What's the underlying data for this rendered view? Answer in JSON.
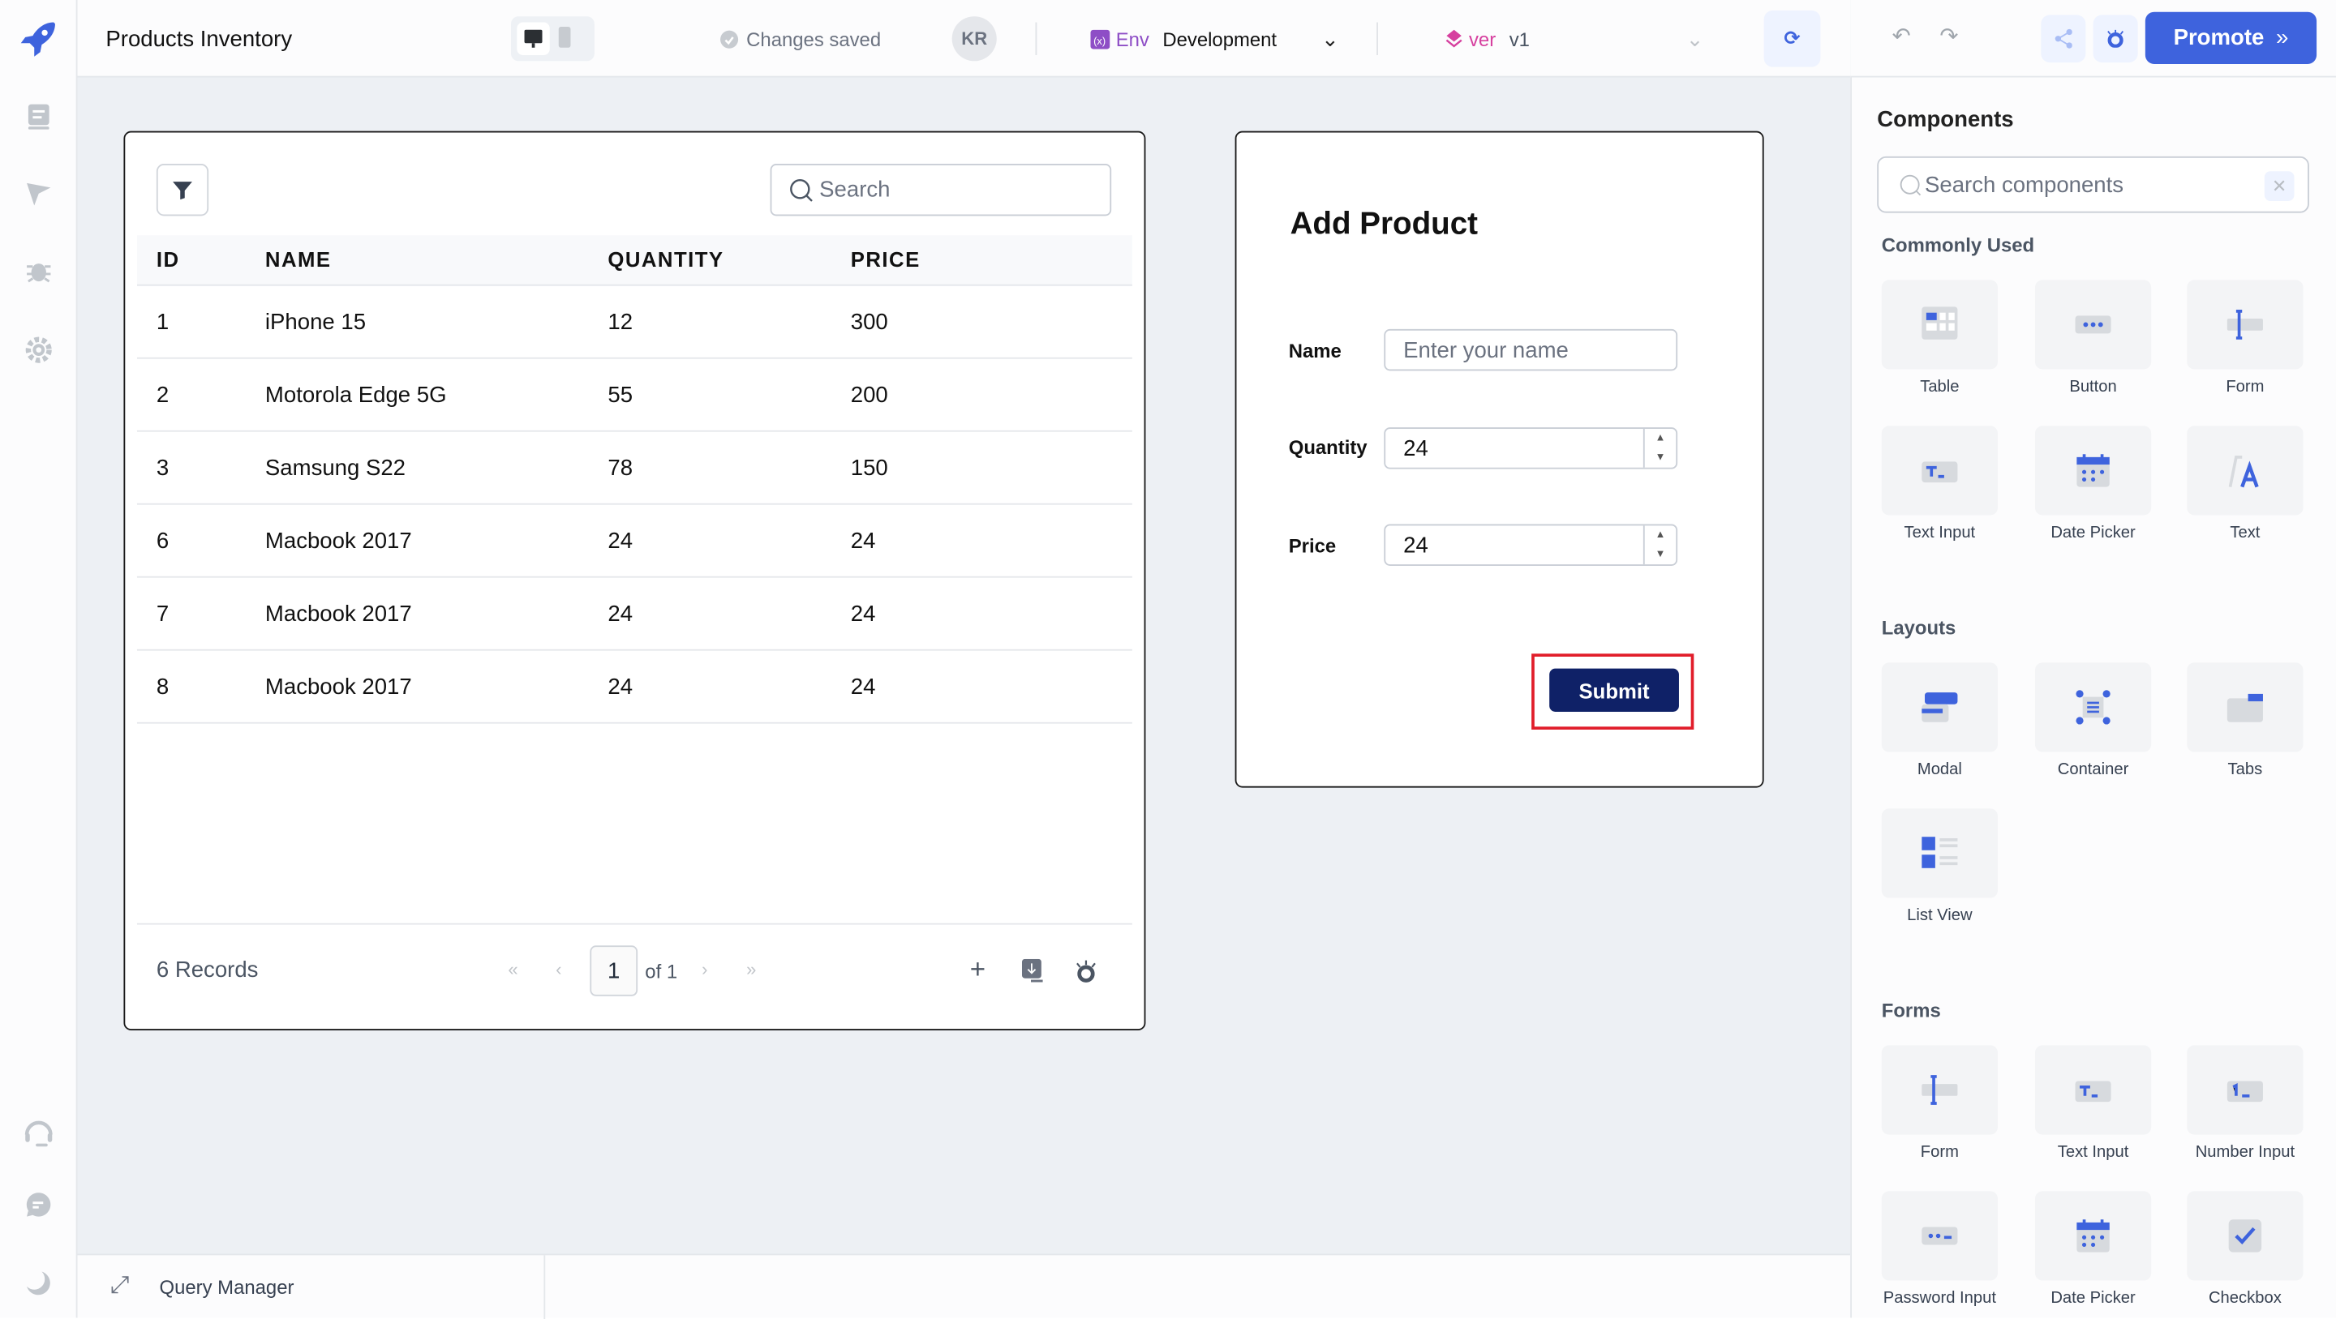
{
  "app": {
    "title": "Products Inventory",
    "save_status": "Changes saved",
    "avatar_initials": "KR",
    "env_label": "Env",
    "env_value": "Development",
    "version_label": "ver",
    "version_value": "v1",
    "promote_label": "Promote",
    "accent": "#3e63dd"
  },
  "sidebar": {
    "icons": [
      "pages-icon",
      "inspector-icon",
      "debugger-icon",
      "settings-icon",
      "support-icon",
      "chat-icon",
      "dark-mode-icon"
    ]
  },
  "table": {
    "search_placeholder": "Search",
    "columns": [
      "ID",
      "NAME",
      "QUANTITY",
      "PRICE"
    ],
    "rows": [
      [
        "1",
        "iPhone 15",
        "12",
        "300"
      ],
      [
        "2",
        "Motorola Edge 5G",
        "55",
        "200"
      ],
      [
        "3",
        "Samsung S22",
        "78",
        "150"
      ],
      [
        "6",
        "Macbook 2017",
        "24",
        "24"
      ],
      [
        "7",
        "Macbook 2017",
        "24",
        "24"
      ],
      [
        "8",
        "Macbook 2017",
        "24",
        "24"
      ]
    ],
    "records": "6 Records",
    "page": "1",
    "page_of": "of 1"
  },
  "form": {
    "title": "Add Product",
    "name_label": "Name",
    "name_placeholder": "Enter your name",
    "quantity_label": "Quantity",
    "quantity_value": "24",
    "price_label": "Price",
    "price_value": "24",
    "submit_label": "Submit",
    "submit_color": "#0f2167",
    "highlight_color": "#e11d2a"
  },
  "components": {
    "title": "Components",
    "search_placeholder": "Search components",
    "sections": [
      {
        "title": "Commonly Used",
        "items": [
          {
            "label": "Table",
            "icon": "table"
          },
          {
            "label": "Button",
            "icon": "button"
          },
          {
            "label": "Form",
            "icon": "form"
          },
          {
            "label": "Text Input",
            "icon": "textinput"
          },
          {
            "label": "Date Picker",
            "icon": "datepicker"
          },
          {
            "label": "Text",
            "icon": "text"
          }
        ]
      },
      {
        "title": "Layouts",
        "items": [
          {
            "label": "Modal",
            "icon": "modal"
          },
          {
            "label": "Container",
            "icon": "container"
          },
          {
            "label": "Tabs",
            "icon": "tabs"
          },
          {
            "label": "List View",
            "icon": "listview"
          }
        ]
      },
      {
        "title": "Forms",
        "items": [
          {
            "label": "Form",
            "icon": "form"
          },
          {
            "label": "Text Input",
            "icon": "textinput"
          },
          {
            "label": "Number Input",
            "icon": "numberinput"
          },
          {
            "label": "Password Input",
            "icon": "password"
          },
          {
            "label": "Date Picker",
            "icon": "datepicker"
          },
          {
            "label": "Checkbox",
            "icon": "checkbox"
          }
        ]
      }
    ]
  },
  "footer": {
    "query_manager": "Query Manager"
  }
}
